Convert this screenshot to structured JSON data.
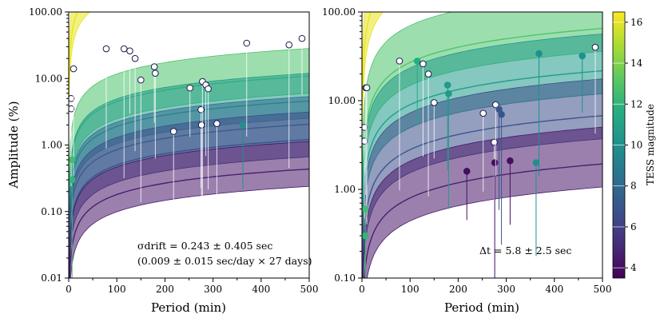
{
  "chart_data": [
    {
      "type": "scatter",
      "title": "",
      "xlabel": "Period (min)",
      "ylabel": "Amplitude (%)",
      "xlim": [
        0,
        500
      ],
      "ylim": [
        0.01,
        100
      ],
      "yscale": "log",
      "x_ticks": [
        "0",
        "100",
        "200",
        "300",
        "400",
        "500"
      ],
      "y_ticks": [
        "0.01",
        "0.10",
        "1.00",
        "10.00",
        "100.00"
      ],
      "annotation_line1": "σdrift = 0.243 ± 0.405 sec",
      "annotation_line2": "(0.009 ± 0.015 sec/day × 27 days)",
      "band_model": "amplitude ∝ 1/period, drift 0.243 ± 0.405 sec",
      "bands": [
        {
          "tess_mag": 16,
          "center_at_100min": 300,
          "color": "#e8e418"
        },
        {
          "tess_mag": 12,
          "center_at_100min": 4.5,
          "color": "#4cc26c"
        },
        {
          "tess_mag": 10,
          "center_at_100min": 1.9,
          "color": "#1f9a8a"
        },
        {
          "tess_mag": 8,
          "center_at_100min": 0.85,
          "color": "#2f6d8e"
        },
        {
          "tess_mag": 6,
          "center_at_100min": 0.5,
          "color": "#3c4f8a"
        },
        {
          "tess_mag": 4,
          "center_at_100min": 0.18,
          "color": "#48186a"
        }
      ],
      "points": [
        {
          "period": 5,
          "amplitude": 5.0,
          "tess_mag": 13.5
        },
        {
          "period": 5,
          "amplitude": 3.5,
          "tess_mag": 13.8
        },
        {
          "period": 10,
          "amplitude": 14,
          "tess_mag": 14.0
        },
        {
          "period": 7,
          "amplitude": 0.6,
          "tess_mag": 12.5
        },
        {
          "period": 7,
          "amplitude": 0.3,
          "tess_mag": 12.0
        },
        {
          "period": 78,
          "amplitude": 28,
          "tess_mag": 14.0
        },
        {
          "period": 115,
          "amplitude": 28,
          "tess_mag": 13.5
        },
        {
          "period": 127,
          "amplitude": 26,
          "tess_mag": 13.5
        },
        {
          "period": 138,
          "amplitude": 20,
          "tess_mag": 13.0
        },
        {
          "period": 150,
          "amplitude": 9.5,
          "tess_mag": 13.0
        },
        {
          "period": 178,
          "amplitude": 15,
          "tess_mag": 13.5
        },
        {
          "period": 180,
          "amplitude": 12,
          "tess_mag": 13.5
        },
        {
          "period": 218,
          "amplitude": 1.6,
          "tess_mag": 13.0
        },
        {
          "period": 252,
          "amplitude": 7.2,
          "tess_mag": 13.0
        },
        {
          "period": 275,
          "amplitude": 3.4,
          "tess_mag": 13.0
        },
        {
          "period": 276,
          "amplitude": 2.0,
          "tess_mag": 13.0
        },
        {
          "period": 278,
          "amplitude": 9.0,
          "tess_mag": 13.0
        },
        {
          "period": 285,
          "amplitude": 8.0,
          "tess_mag": 13.0
        },
        {
          "period": 290,
          "amplitude": 7.0,
          "tess_mag": 13.0
        },
        {
          "period": 308,
          "amplitude": 2.1,
          "tess_mag": 13.0
        },
        {
          "period": 362,
          "amplitude": 2.0,
          "tess_mag": 10.0
        },
        {
          "period": 370,
          "amplitude": 34,
          "tess_mag": 13.0
        },
        {
          "period": 458,
          "amplitude": 32,
          "tess_mag": 13.0
        },
        {
          "period": 485,
          "amplitude": 40,
          "tess_mag": 13.0
        }
      ]
    },
    {
      "type": "scatter",
      "title": "",
      "xlabel": "Period (min)",
      "ylabel": "",
      "xlim": [
        0,
        500
      ],
      "ylim": [
        0.1,
        100
      ],
      "yscale": "log",
      "x_ticks": [
        "0",
        "100",
        "200",
        "300",
        "400",
        "500"
      ],
      "y_ticks": [
        "0.10",
        "1.00",
        "10.00",
        "100.00"
      ],
      "annotation_line1": "Δt = 5.8 ± 2.5 sec",
      "band_model": "amplitude ∝ 1/period, offset 5.8 ± 2.5 sec",
      "bands": [
        {
          "tess_mag": 16,
          "center_at_100min": 300,
          "color": "#e8e418"
        },
        {
          "tess_mag": 12,
          "center_at_100min": 27,
          "color": "#4cc26c"
        },
        {
          "tess_mag": 10,
          "center_at_100min": 9.0,
          "color": "#1f9a8a"
        },
        {
          "tess_mag": 6,
          "center_at_100min": 2.8,
          "color": "#3c4f8a"
        },
        {
          "tess_mag": 4,
          "center_at_100min": 0.8,
          "color": "#48186a"
        }
      ],
      "points": [
        {
          "period": 5,
          "amplitude": 5.0,
          "tess_mag": 13.5
        },
        {
          "period": 5,
          "amplitude": 3.5,
          "tess_mag": 13.8
        },
        {
          "period": 8,
          "amplitude": 14.0,
          "tess_mag": 14.0
        },
        {
          "period": 10,
          "amplitude": 14.0,
          "tess_mag": 14.0
        },
        {
          "period": 7,
          "amplitude": 0.6,
          "tess_mag": 12.5
        },
        {
          "period": 7,
          "amplitude": 0.3,
          "tess_mag": 12.0
        },
        {
          "period": 78,
          "amplitude": 28,
          "tess_mag": 14.0
        },
        {
          "period": 115,
          "amplitude": 28,
          "tess_mag": 11.5
        },
        {
          "period": 127,
          "amplitude": 26,
          "tess_mag": 13.5
        },
        {
          "period": 138,
          "amplitude": 20,
          "tess_mag": 13.0
        },
        {
          "period": 150,
          "amplitude": 9.5,
          "tess_mag": 13.0
        },
        {
          "period": 178,
          "amplitude": 15,
          "tess_mag": 10.5
        },
        {
          "period": 180,
          "amplitude": 12,
          "tess_mag": 10.5
        },
        {
          "period": 218,
          "amplitude": 1.6,
          "tess_mag": 4.0
        },
        {
          "period": 252,
          "amplitude": 7.2,
          "tess_mag": 13.0
        },
        {
          "period": 275,
          "amplitude": 3.4,
          "tess_mag": 13.0
        },
        {
          "period": 276,
          "amplitude": 2.0,
          "tess_mag": 4.0
        },
        {
          "period": 278,
          "amplitude": 9.0,
          "tess_mag": 13.0
        },
        {
          "period": 285,
          "amplitude": 8.0,
          "tess_mag": 7.0
        },
        {
          "period": 290,
          "amplitude": 7.0,
          "tess_mag": 7.0
        },
        {
          "period": 308,
          "amplitude": 2.1,
          "tess_mag": 4.0
        },
        {
          "period": 362,
          "amplitude": 2.0,
          "tess_mag": 10.0
        },
        {
          "period": 368,
          "amplitude": 34,
          "tess_mag": 10.0
        },
        {
          "period": 458,
          "amplitude": 32,
          "tess_mag": 10.0
        },
        {
          "period": 485,
          "amplitude": 40,
          "tess_mag": 13.5
        }
      ]
    }
  ],
  "colorbar": {
    "label": "TESS magnitude",
    "min": 3.5,
    "max": 16.5,
    "ticks": [
      "4",
      "6",
      "8",
      "10",
      "12",
      "14",
      "16"
    ],
    "stops": [
      "#440154",
      "#472c7a",
      "#3b518b",
      "#2c718e",
      "#21908d",
      "#27ad81",
      "#5cc863",
      "#aadc32",
      "#fde725"
    ]
  }
}
